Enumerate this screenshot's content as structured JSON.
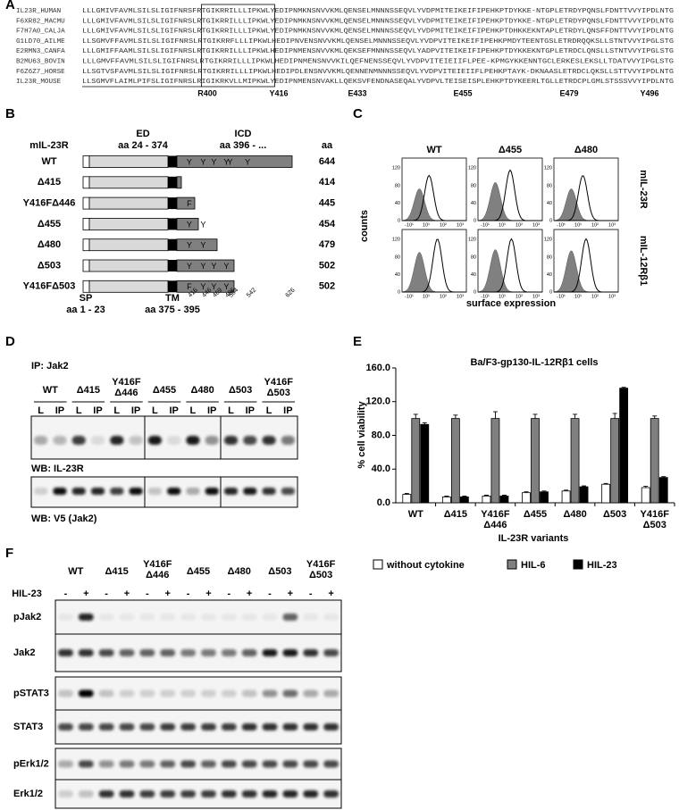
{
  "panel_labels": [
    "A",
    "B",
    "C",
    "D",
    "E",
    "F"
  ],
  "alignment": {
    "rows": [
      {
        "name": "IL23R_HUMAN",
        "seq": "LLLGMIVFAVMLSILSLIGIFNRSFRTGIKRRILLLIPKWLYEDIPNMKNSNVVKMLQENSELMNNNSSEQVLYVDPMITEIKEIFIPEHKPTDYKKE-NTGPLETRDYPQNSLFDNTTVVYIPDLNTG"
      },
      {
        "name": "F6XR82_MACMU",
        "seq": "LLLGMIVFAVMLSILSLIGIFNRSLRTGIKRRILLLIPKWLYEDIPNMKNSNVVKMLQENSELMNNNSSEQVLYVDPMITEIKEIFIPEHKPTDYKKE-NTGPLETRDYPQNSLFDNTTVVYIPDLNTG"
      },
      {
        "name": "F7H7A0_CALJA",
        "seq": "LLLGMIVFAVMLSILSLIGIFNRSLRTGIKRRILLLIPKWLYEDIPNMKNSNVVKMLQENSELMNNNSSEQVLYVDPMITEIKEIFIPEHKPTDHKKEKNTAPLETRDYLQNSFFDNTTVVYIPDLNTG"
      },
      {
        "name": "G1LD70_AILME",
        "seq": "LLSGMVFFAVMLSILSLIGIFNRSLRTGIKRRFLLLIPKWLHEDIPNVENSNVVKMLQENSELMNNNSSEQVLYVDPVITEIKEIFIPEHKPMDYTEENTGSLETRDRQQKSLLSTNTVVYIPGLSTG"
      },
      {
        "name": "E2RMN3_CANFA",
        "seq": "LLLGMIFFAAMLSILSLIGIFNRSLRTGIKRRILLLIPKWLHEDIPNMENSNVVKMLQEKSEFMNNNSSEQVLYADPVITEIKEIFIPEHKPTDYKKEKNTGPLETRDCLQNSLLSTNTVVYIPGLSTG"
      },
      {
        "name": "B2MU63_BOVIN",
        "seq": "LLLGMVFFAVMLSILSLIGIFNRSLRTGIKRRILLLIPKWLHEDIPNMENSNVVKILQEFNENSSEQVLYVDPVITEIEIIFLPEE-KPMGYKKENNTGCLERKESLEKSLLTDATVVYIPGLSTG"
      },
      {
        "name": "F6Z6Z7_HORSE",
        "seq": "LLSGTVSFAVMLSILSLIGIFNRSLRTGIKRRILLLIPKWLHEDIPDLENSNVVKMLQENNENMNNNSSEQVLYVDPVITEIEIIFLPEHKPTAYK-DKNAASLETRDCLQKSLLSTTVVYIPDLNTG"
      },
      {
        "name": "IL23R_MOUSE",
        "seq": "LLSGMVFLAIMLPIFSLIGIFNRSLRIGIKRKVLLMIPKWLYEDIPNMENSNVAKLLQEKSVFENDNASEQALYVDPVLTEISEISPLEHKPTDYKEERLTGLLETRDCPLGMLSTSSSVVYIPDLNTG"
      }
    ],
    "markers": [
      "R400",
      "Y416",
      "E433",
      "E455",
      "E479",
      "Y496"
    ]
  },
  "panel_b": {
    "header": "mIL-23R",
    "ed": "ED",
    "ed_range": "aa 24 - 374",
    "icd": "ICD",
    "icd_range": "aa 396 - ...",
    "aa": "aa",
    "rows": [
      {
        "name": "WT",
        "aa": "644",
        "marks": [
          "Y",
          "Y",
          "Y",
          "Y",
          "Y",
          "Y"
        ]
      },
      {
        "name": "Δ415",
        "aa": "414",
        "marks": []
      },
      {
        "name": "Y416FΔ446",
        "aa": "445",
        "marks": [
          "F"
        ]
      },
      {
        "name": "Δ455",
        "aa": "454",
        "marks": [
          "Y",
          "Y"
        ]
      },
      {
        "name": "Δ480",
        "aa": "479",
        "marks": [
          "Y",
          "Y"
        ]
      },
      {
        "name": "Δ503",
        "aa": "502",
        "marks": [
          "Y",
          "Y",
          "Y",
          "Y"
        ]
      },
      {
        "name": "Y416FΔ503",
        "aa": "502",
        "marks": [
          "F",
          "Y",
          "Y",
          "Y"
        ]
      }
    ],
    "sp": "SP",
    "sp_range": "aa 1 - 23",
    "tm": "TM",
    "tm_range": "aa 375 - 395",
    "sites": [
      "416",
      "446",
      "469",
      "496",
      "504",
      "542",
      "626"
    ]
  },
  "panel_c": {
    "columns": [
      "WT",
      "Δ455",
      "Δ480"
    ],
    "rows": [
      "mIL-23R",
      "mIL-12Rβ1"
    ],
    "y_label": "counts",
    "x_label": "surface expression",
    "y_ticks": [
      "0",
      "40",
      "80",
      "120"
    ],
    "x_ticks": [
      "-10¹",
      "10¹",
      "10²",
      "10³"
    ]
  },
  "panel_d": {
    "ip": "IP: Jak2",
    "groups": [
      "WT",
      "Δ415",
      "Y416F Δ446",
      "Δ455",
      "Δ480",
      "Δ503",
      "Y416F Δ503"
    ],
    "lanes": [
      "L",
      "IP"
    ],
    "wb1": "WB: IL-23R",
    "wb2": "WB: V5 (Jak2)"
  },
  "panel_f": {
    "groups": [
      "WT",
      "Δ415",
      "Y416F Δ446",
      "Δ455",
      "Δ480",
      "Δ503",
      "Y416F Δ503"
    ],
    "treatment": "HIL-23",
    "signs": [
      "-",
      "+"
    ],
    "blots": [
      "pJak2",
      "Jak2",
      "pSTAT3",
      "STAT3",
      "pErk1/2",
      "Erk1/2"
    ]
  },
  "chart_data": {
    "type": "bar",
    "title": "Ba/F3-gp130-IL-12Rβ1 cells",
    "y_label": "% cell viability",
    "x_label": "IL-23R variants",
    "categories": [
      "WT",
      "Δ415",
      "Y416F Δ446",
      "Δ455",
      "Δ480",
      "Δ503",
      "Y416F Δ503"
    ],
    "ylim": [
      0,
      160
    ],
    "yticks": [
      {
        "value": 0,
        "label": "0.0"
      },
      {
        "value": 40,
        "label": "40.0"
      },
      {
        "value": 80,
        "label": "80.0"
      },
      {
        "value": 120,
        "label": "120.0"
      },
      {
        "value": 160,
        "label": "160.0"
      }
    ],
    "series": [
      {
        "name": "without cytokine",
        "color": "#ffffff",
        "values": [
          10,
          7,
          8,
          12,
          14,
          22,
          18
        ],
        "errors": [
          1,
          1,
          1,
          1,
          1,
          1,
          1.5
        ]
      },
      {
        "name": "HIL-6",
        "color": "#808080",
        "values": [
          100,
          100,
          100,
          100,
          100,
          100,
          100
        ],
        "errors": [
          5,
          4,
          8,
          5,
          5,
          6,
          3
        ]
      },
      {
        "name": "HIL-23",
        "color": "#000000",
        "values": [
          93,
          7,
          8,
          13,
          19,
          136,
          30
        ],
        "errors": [
          2,
          1,
          1,
          1,
          1,
          1,
          1
        ]
      }
    ]
  }
}
